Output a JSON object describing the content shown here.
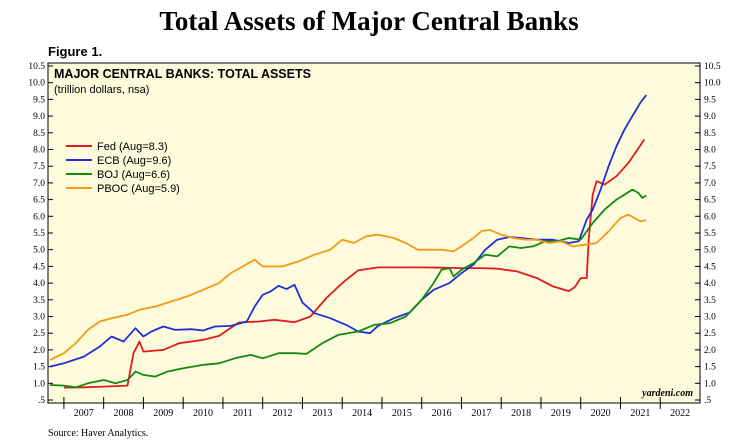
{
  "header": {
    "title": "Total Assets of Major Central Banks",
    "figure": "Figure 1.",
    "source": "Source: Haver Analytics."
  },
  "chart_data": {
    "type": "line",
    "title": "MAJOR CENTRAL BANKS: TOTAL ASSETS",
    "subtitle": "(trillion dollars, nsa)",
    "credit": "yardeni.com",
    "xlim": [
      2006.6,
      2023.0
    ],
    "ylim": [
      0.5,
      10.5
    ],
    "yticks": [
      ".5",
      "1.0",
      "1.5",
      "2.0",
      "2.5",
      "3.0",
      "3.5",
      "4.0",
      "4.5",
      "5.0",
      "5.5",
      "6.0",
      "6.5",
      "7.0",
      "7.5",
      "8.0",
      "8.5",
      "9.0",
      "9.5",
      "10.0",
      "10.5"
    ],
    "year_labels": [
      "2007",
      "2008",
      "2009",
      "2010",
      "2011",
      "2012",
      "2013",
      "2014",
      "2015",
      "2016",
      "2017",
      "2018",
      "2019",
      "2020",
      "2021",
      "2022"
    ],
    "grid": false,
    "legend_position": "left",
    "series": [
      {
        "name": "Fed (Aug=8.3)",
        "color": "#e41a1c",
        "points": [
          [
            2007.0,
            0.87
          ],
          [
            2007.5,
            0.88
          ],
          [
            2008.0,
            0.9
          ],
          [
            2008.6,
            0.93
          ],
          [
            2008.75,
            1.9
          ],
          [
            2008.9,
            2.25
          ],
          [
            2009.0,
            1.95
          ],
          [
            2009.5,
            2.0
          ],
          [
            2009.9,
            2.2
          ],
          [
            2010.5,
            2.3
          ],
          [
            2010.9,
            2.42
          ],
          [
            2011.4,
            2.82
          ],
          [
            2011.9,
            2.85
          ],
          [
            2012.3,
            2.9
          ],
          [
            2012.8,
            2.83
          ],
          [
            2013.2,
            3.0
          ],
          [
            2013.6,
            3.55
          ],
          [
            2014.0,
            4.0
          ],
          [
            2014.4,
            4.38
          ],
          [
            2014.9,
            4.47
          ],
          [
            2015.5,
            4.47
          ],
          [
            2016.0,
            4.47
          ],
          [
            2016.5,
            4.46
          ],
          [
            2017.0,
            4.45
          ],
          [
            2017.5,
            4.45
          ],
          [
            2017.9,
            4.43
          ],
          [
            2018.4,
            4.35
          ],
          [
            2018.9,
            4.15
          ],
          [
            2019.3,
            3.9
          ],
          [
            2019.7,
            3.76
          ],
          [
            2019.85,
            3.88
          ],
          [
            2020.0,
            4.15
          ],
          [
            2020.15,
            4.15
          ],
          [
            2020.2,
            5.3
          ],
          [
            2020.3,
            6.65
          ],
          [
            2020.4,
            7.05
          ],
          [
            2020.6,
            6.95
          ],
          [
            2020.9,
            7.2
          ],
          [
            2021.2,
            7.6
          ],
          [
            2021.4,
            7.95
          ],
          [
            2021.6,
            8.3
          ]
        ]
      },
      {
        "name": "ECB (Aug=9.6)",
        "color": "#1f2fd6",
        "points": [
          [
            2006.65,
            1.5
          ],
          [
            2007.0,
            1.6
          ],
          [
            2007.5,
            1.8
          ],
          [
            2007.9,
            2.1
          ],
          [
            2008.2,
            2.4
          ],
          [
            2008.5,
            2.25
          ],
          [
            2008.8,
            2.65
          ],
          [
            2009.0,
            2.4
          ],
          [
            2009.2,
            2.55
          ],
          [
            2009.5,
            2.7
          ],
          [
            2009.8,
            2.6
          ],
          [
            2010.2,
            2.62
          ],
          [
            2010.5,
            2.58
          ],
          [
            2010.8,
            2.7
          ],
          [
            2011.2,
            2.72
          ],
          [
            2011.6,
            2.85
          ],
          [
            2011.8,
            3.3
          ],
          [
            2012.0,
            3.65
          ],
          [
            2012.2,
            3.75
          ],
          [
            2012.4,
            3.92
          ],
          [
            2012.6,
            3.82
          ],
          [
            2012.8,
            3.95
          ],
          [
            2013.0,
            3.42
          ],
          [
            2013.3,
            3.1
          ],
          [
            2013.7,
            2.95
          ],
          [
            2014.1,
            2.75
          ],
          [
            2014.4,
            2.55
          ],
          [
            2014.7,
            2.5
          ],
          [
            2014.9,
            2.72
          ],
          [
            2015.3,
            2.95
          ],
          [
            2015.7,
            3.12
          ],
          [
            2016.0,
            3.5
          ],
          [
            2016.3,
            3.8
          ],
          [
            2016.7,
            4.0
          ],
          [
            2017.0,
            4.3
          ],
          [
            2017.3,
            4.55
          ],
          [
            2017.6,
            5.0
          ],
          [
            2017.9,
            5.3
          ],
          [
            2018.2,
            5.38
          ],
          [
            2018.5,
            5.35
          ],
          [
            2018.9,
            5.3
          ],
          [
            2019.3,
            5.3
          ],
          [
            2019.7,
            5.2
          ],
          [
            2019.95,
            5.25
          ],
          [
            2020.15,
            5.9
          ],
          [
            2020.3,
            6.2
          ],
          [
            2020.5,
            6.8
          ],
          [
            2020.7,
            7.5
          ],
          [
            2020.9,
            8.1
          ],
          [
            2021.1,
            8.6
          ],
          [
            2021.3,
            9.0
          ],
          [
            2021.5,
            9.4
          ],
          [
            2021.65,
            9.63
          ]
        ]
      },
      {
        "name": "BOJ (Aug=6.6)",
        "color": "#118a11",
        "points": [
          [
            2006.65,
            0.95
          ],
          [
            2007.0,
            0.93
          ],
          [
            2007.3,
            0.88
          ],
          [
            2007.6,
            1.0
          ],
          [
            2008.0,
            1.1
          ],
          [
            2008.3,
            1.0
          ],
          [
            2008.6,
            1.1
          ],
          [
            2008.8,
            1.35
          ],
          [
            2009.0,
            1.25
          ],
          [
            2009.3,
            1.2
          ],
          [
            2009.6,
            1.35
          ],
          [
            2010.0,
            1.45
          ],
          [
            2010.5,
            1.55
          ],
          [
            2010.9,
            1.6
          ],
          [
            2011.3,
            1.75
          ],
          [
            2011.7,
            1.85
          ],
          [
            2012.0,
            1.75
          ],
          [
            2012.4,
            1.9
          ],
          [
            2012.8,
            1.9
          ],
          [
            2013.1,
            1.88
          ],
          [
            2013.5,
            2.2
          ],
          [
            2013.9,
            2.45
          ],
          [
            2014.4,
            2.55
          ],
          [
            2014.8,
            2.75
          ],
          [
            2015.2,
            2.8
          ],
          [
            2015.6,
            3.0
          ],
          [
            2016.0,
            3.5
          ],
          [
            2016.3,
            4.0
          ],
          [
            2016.5,
            4.4
          ],
          [
            2016.7,
            4.45
          ],
          [
            2016.8,
            4.2
          ],
          [
            2017.0,
            4.4
          ],
          [
            2017.3,
            4.6
          ],
          [
            2017.6,
            4.85
          ],
          [
            2017.9,
            4.8
          ],
          [
            2018.2,
            5.1
          ],
          [
            2018.5,
            5.05
          ],
          [
            2018.8,
            5.1
          ],
          [
            2019.1,
            5.25
          ],
          [
            2019.4,
            5.25
          ],
          [
            2019.7,
            5.35
          ],
          [
            2020.0,
            5.3
          ],
          [
            2020.3,
            5.8
          ],
          [
            2020.6,
            6.2
          ],
          [
            2020.9,
            6.5
          ],
          [
            2021.1,
            6.65
          ],
          [
            2021.3,
            6.8
          ],
          [
            2021.45,
            6.7
          ],
          [
            2021.55,
            6.55
          ],
          [
            2021.65,
            6.62
          ]
        ]
      },
      {
        "name": "PBOC (Aug=5.9)",
        "color": "#f59a14",
        "points": [
          [
            2006.65,
            1.7
          ],
          [
            2007.0,
            1.9
          ],
          [
            2007.3,
            2.2
          ],
          [
            2007.6,
            2.6
          ],
          [
            2007.9,
            2.85
          ],
          [
            2008.2,
            2.95
          ],
          [
            2008.6,
            3.05
          ],
          [
            2008.9,
            3.2
          ],
          [
            2009.3,
            3.3
          ],
          [
            2009.7,
            3.45
          ],
          [
            2010.1,
            3.6
          ],
          [
            2010.5,
            3.8
          ],
          [
            2010.9,
            4.0
          ],
          [
            2011.2,
            4.3
          ],
          [
            2011.5,
            4.5
          ],
          [
            2011.8,
            4.7
          ],
          [
            2012.0,
            4.5
          ],
          [
            2012.5,
            4.5
          ],
          [
            2012.9,
            4.65
          ],
          [
            2013.3,
            4.85
          ],
          [
            2013.7,
            5.0
          ],
          [
            2014.0,
            5.3
          ],
          [
            2014.3,
            5.2
          ],
          [
            2014.6,
            5.4
          ],
          [
            2014.9,
            5.45
          ],
          [
            2015.3,
            5.35
          ],
          [
            2015.6,
            5.2
          ],
          [
            2015.9,
            5.0
          ],
          [
            2016.2,
            5.0
          ],
          [
            2016.5,
            5.0
          ],
          [
            2016.8,
            4.95
          ],
          [
            2017.0,
            5.1
          ],
          [
            2017.3,
            5.35
          ],
          [
            2017.5,
            5.55
          ],
          [
            2017.7,
            5.6
          ],
          [
            2018.0,
            5.45
          ],
          [
            2018.3,
            5.35
          ],
          [
            2018.6,
            5.3
          ],
          [
            2018.9,
            5.3
          ],
          [
            2019.2,
            5.2
          ],
          [
            2019.5,
            5.25
          ],
          [
            2019.8,
            5.1
          ],
          [
            2020.1,
            5.15
          ],
          [
            2020.4,
            5.2
          ],
          [
            2020.7,
            5.55
          ],
          [
            2021.0,
            5.95
          ],
          [
            2021.2,
            6.05
          ],
          [
            2021.35,
            5.95
          ],
          [
            2021.5,
            5.85
          ],
          [
            2021.65,
            5.88
          ]
        ]
      }
    ]
  }
}
